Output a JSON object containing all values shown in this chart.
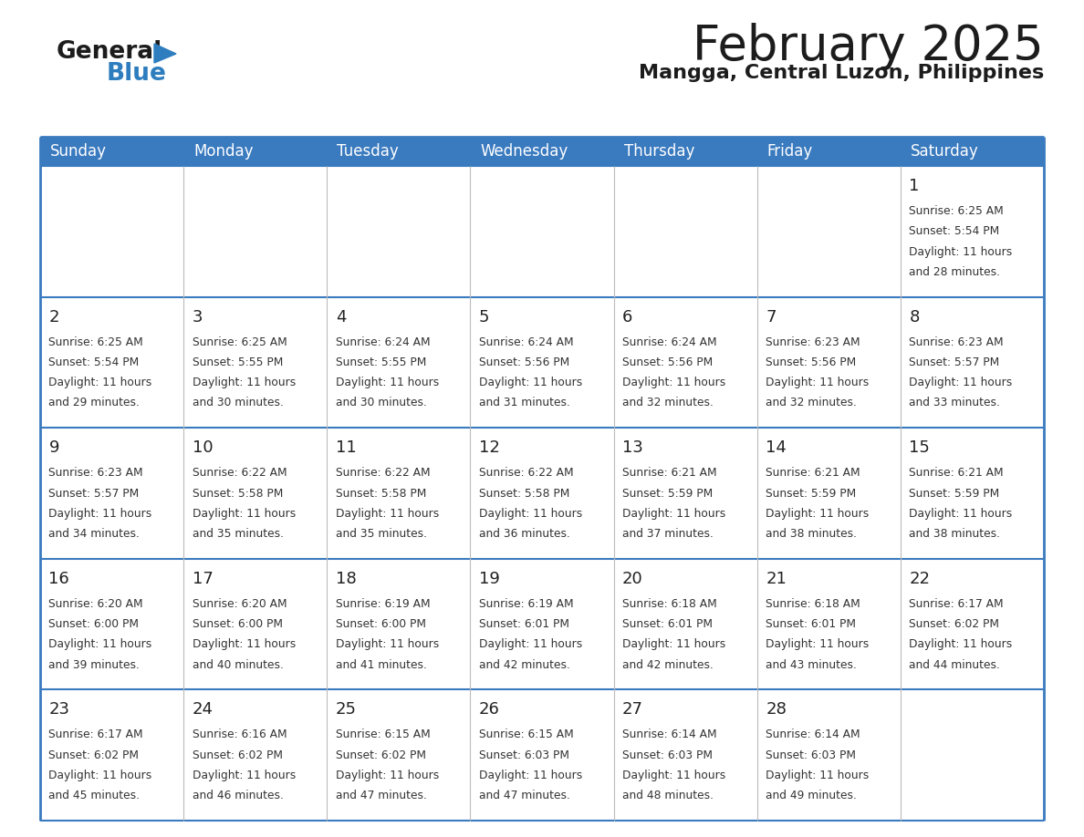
{
  "title": "February 2025",
  "subtitle": "Mangga, Central Luzon, Philippines",
  "days_of_week": [
    "Sunday",
    "Monday",
    "Tuesday",
    "Wednesday",
    "Thursday",
    "Friday",
    "Saturday"
  ],
  "header_bg": "#3a7abf",
  "header_text": "#ffffff",
  "cell_bg": "#ffffff",
  "border_color": "#3a7abf",
  "sep_color": "#aaaaaa",
  "text_color": "#333333",
  "title_fontsize": 38,
  "subtitle_fontsize": 16,
  "day_header_fontsize": 12,
  "day_num_fontsize": 13,
  "cell_text_fontsize": 8.8,
  "calendar_data": [
    [
      null,
      null,
      null,
      null,
      null,
      null,
      {
        "day": 1,
        "sunrise": "6:25 AM",
        "sunset": "5:54 PM",
        "daylight": "11 hours and 28 minutes."
      }
    ],
    [
      {
        "day": 2,
        "sunrise": "6:25 AM",
        "sunset": "5:54 PM",
        "daylight": "11 hours and 29 minutes."
      },
      {
        "day": 3,
        "sunrise": "6:25 AM",
        "sunset": "5:55 PM",
        "daylight": "11 hours and 30 minutes."
      },
      {
        "day": 4,
        "sunrise": "6:24 AM",
        "sunset": "5:55 PM",
        "daylight": "11 hours and 30 minutes."
      },
      {
        "day": 5,
        "sunrise": "6:24 AM",
        "sunset": "5:56 PM",
        "daylight": "11 hours and 31 minutes."
      },
      {
        "day": 6,
        "sunrise": "6:24 AM",
        "sunset": "5:56 PM",
        "daylight": "11 hours and 32 minutes."
      },
      {
        "day": 7,
        "sunrise": "6:23 AM",
        "sunset": "5:56 PM",
        "daylight": "11 hours and 32 minutes."
      },
      {
        "day": 8,
        "sunrise": "6:23 AM",
        "sunset": "5:57 PM",
        "daylight": "11 hours and 33 minutes."
      }
    ],
    [
      {
        "day": 9,
        "sunrise": "6:23 AM",
        "sunset": "5:57 PM",
        "daylight": "11 hours and 34 minutes."
      },
      {
        "day": 10,
        "sunrise": "6:22 AM",
        "sunset": "5:58 PM",
        "daylight": "11 hours and 35 minutes."
      },
      {
        "day": 11,
        "sunrise": "6:22 AM",
        "sunset": "5:58 PM",
        "daylight": "11 hours and 35 minutes."
      },
      {
        "day": 12,
        "sunrise": "6:22 AM",
        "sunset": "5:58 PM",
        "daylight": "11 hours and 36 minutes."
      },
      {
        "day": 13,
        "sunrise": "6:21 AM",
        "sunset": "5:59 PM",
        "daylight": "11 hours and 37 minutes."
      },
      {
        "day": 14,
        "sunrise": "6:21 AM",
        "sunset": "5:59 PM",
        "daylight": "11 hours and 38 minutes."
      },
      {
        "day": 15,
        "sunrise": "6:21 AM",
        "sunset": "5:59 PM",
        "daylight": "11 hours and 38 minutes."
      }
    ],
    [
      {
        "day": 16,
        "sunrise": "6:20 AM",
        "sunset": "6:00 PM",
        "daylight": "11 hours and 39 minutes."
      },
      {
        "day": 17,
        "sunrise": "6:20 AM",
        "sunset": "6:00 PM",
        "daylight": "11 hours and 40 minutes."
      },
      {
        "day": 18,
        "sunrise": "6:19 AM",
        "sunset": "6:00 PM",
        "daylight": "11 hours and 41 minutes."
      },
      {
        "day": 19,
        "sunrise": "6:19 AM",
        "sunset": "6:01 PM",
        "daylight": "11 hours and 42 minutes."
      },
      {
        "day": 20,
        "sunrise": "6:18 AM",
        "sunset": "6:01 PM",
        "daylight": "11 hours and 42 minutes."
      },
      {
        "day": 21,
        "sunrise": "6:18 AM",
        "sunset": "6:01 PM",
        "daylight": "11 hours and 43 minutes."
      },
      {
        "day": 22,
        "sunrise": "6:17 AM",
        "sunset": "6:02 PM",
        "daylight": "11 hours and 44 minutes."
      }
    ],
    [
      {
        "day": 23,
        "sunrise": "6:17 AM",
        "sunset": "6:02 PM",
        "daylight": "11 hours and 45 minutes."
      },
      {
        "day": 24,
        "sunrise": "6:16 AM",
        "sunset": "6:02 PM",
        "daylight": "11 hours and 46 minutes."
      },
      {
        "day": 25,
        "sunrise": "6:15 AM",
        "sunset": "6:02 PM",
        "daylight": "11 hours and 47 minutes."
      },
      {
        "day": 26,
        "sunrise": "6:15 AM",
        "sunset": "6:03 PM",
        "daylight": "11 hours and 47 minutes."
      },
      {
        "day": 27,
        "sunrise": "6:14 AM",
        "sunset": "6:03 PM",
        "daylight": "11 hours and 48 minutes."
      },
      {
        "day": 28,
        "sunrise": "6:14 AM",
        "sunset": "6:03 PM",
        "daylight": "11 hours and 49 minutes."
      },
      null
    ]
  ]
}
